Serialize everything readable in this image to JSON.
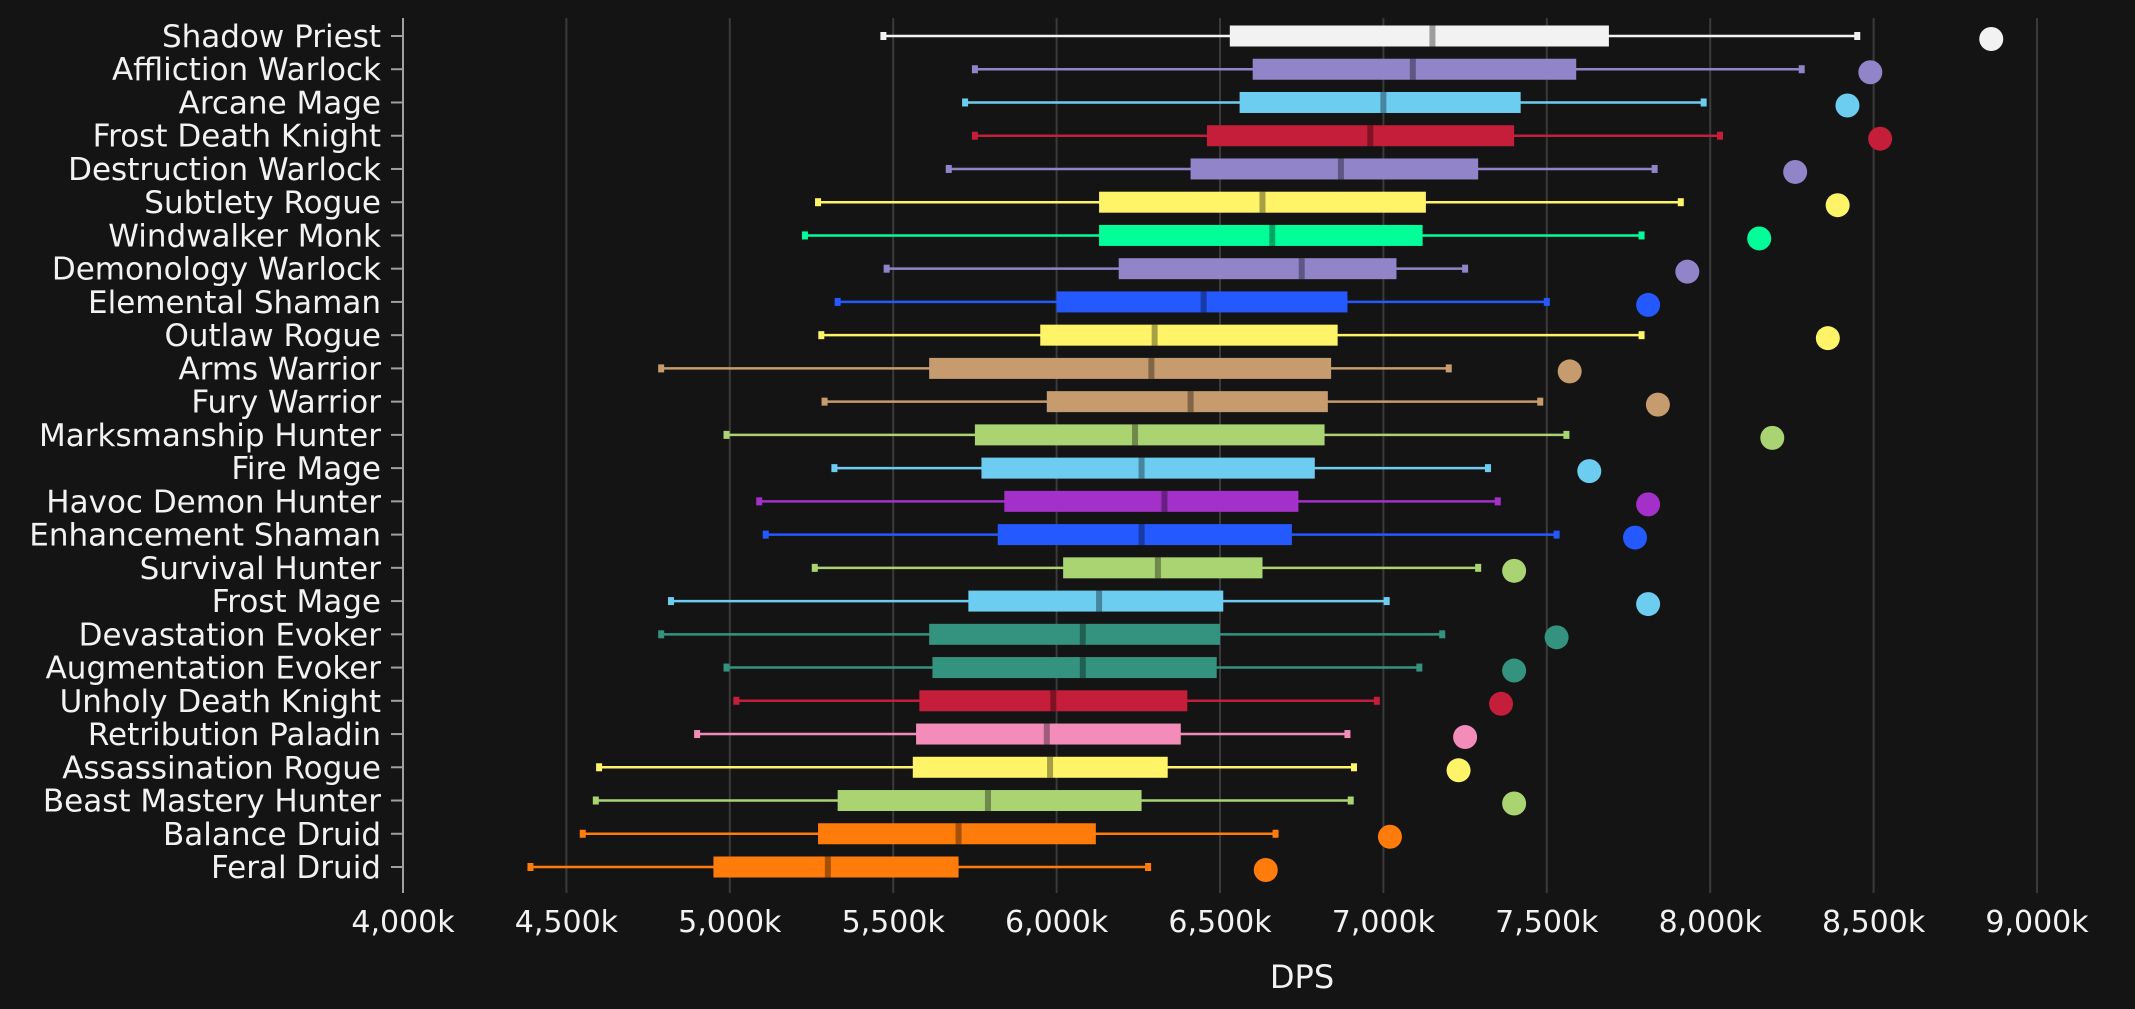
{
  "chart_data": {
    "type": "boxplot",
    "title": "",
    "xlabel": "DPS",
    "ylabel": "",
    "xlim": [
      4000,
      9000
    ],
    "x_unit_suffix": "k",
    "grid": true,
    "ticks": [
      4000,
      4500,
      5000,
      5500,
      6000,
      6500,
      7000,
      7500,
      8000,
      8500,
      9000
    ],
    "tick_labels": [
      "4,000k",
      "4,500k",
      "5,000k",
      "5,500k",
      "6,000k",
      "6,500k",
      "7,000k",
      "7,500k",
      "8,000k",
      "8,500k",
      "9,000k"
    ],
    "series": [
      {
        "name": "Shadow Priest",
        "color": "#f2f2f2",
        "min": 5470,
        "q1": 6530,
        "median": 7150,
        "q3": 7690,
        "max": 8450,
        "max_point": 8860
      },
      {
        "name": "Affliction Warlock",
        "color": "#9184c9",
        "min": 5750,
        "q1": 6600,
        "median": 7090,
        "q3": 7590,
        "max": 8280,
        "max_point": 8490
      },
      {
        "name": "Arcane Mage",
        "color": "#6ccdf1",
        "min": 5720,
        "q1": 6560,
        "median": 7000,
        "q3": 7420,
        "max": 7980,
        "max_point": 8420
      },
      {
        "name": "Frost Death Knight",
        "color": "#c41e3a",
        "min": 5750,
        "q1": 6460,
        "median": 6960,
        "q3": 7400,
        "max": 8030,
        "max_point": 8520
      },
      {
        "name": "Destruction Warlock",
        "color": "#9184c9",
        "min": 5670,
        "q1": 6410,
        "median": 6870,
        "q3": 7290,
        "max": 7830,
        "max_point": 8260
      },
      {
        "name": "Subtlety Rogue",
        "color": "#fff468",
        "min": 5270,
        "q1": 6130,
        "median": 6630,
        "q3": 7130,
        "max": 7910,
        "max_point": 8390
      },
      {
        "name": "Windwalker Monk",
        "color": "#00ff98",
        "min": 5230,
        "q1": 6130,
        "median": 6660,
        "q3": 7120,
        "max": 7790,
        "max_point": 8150
      },
      {
        "name": "Demonology Warlock",
        "color": "#9184c9",
        "min": 5480,
        "q1": 6190,
        "median": 6750,
        "q3": 7040,
        "max": 7250,
        "max_point": 7930
      },
      {
        "name": "Elemental Shaman",
        "color": "#2459ff",
        "min": 5330,
        "q1": 6000,
        "median": 6450,
        "q3": 6890,
        "max": 7500,
        "max_point": 7810
      },
      {
        "name": "Outlaw Rogue",
        "color": "#fff468",
        "min": 5280,
        "q1": 5950,
        "median": 6300,
        "q3": 6860,
        "max": 7790,
        "max_point": 8360
      },
      {
        "name": "Arms Warrior",
        "color": "#c69b6d",
        "min": 4790,
        "q1": 5610,
        "median": 6290,
        "q3": 6840,
        "max": 7200,
        "max_point": 7570
      },
      {
        "name": "Fury Warrior",
        "color": "#c69b6d",
        "min": 5290,
        "q1": 5970,
        "median": 6410,
        "q3": 6830,
        "max": 7480,
        "max_point": 7840
      },
      {
        "name": "Marksmanship Hunter",
        "color": "#aad372",
        "min": 4990,
        "q1": 5750,
        "median": 6240,
        "q3": 6820,
        "max": 7560,
        "max_point": 8190
      },
      {
        "name": "Fire Mage",
        "color": "#6ccdf1",
        "min": 5320,
        "q1": 5770,
        "median": 6260,
        "q3": 6790,
        "max": 7320,
        "max_point": 7630
      },
      {
        "name": "Havoc Demon Hunter",
        "color": "#a330c9",
        "min": 5090,
        "q1": 5840,
        "median": 6330,
        "q3": 6740,
        "max": 7350,
        "max_point": 7810
      },
      {
        "name": "Enhancement Shaman",
        "color": "#2459ff",
        "min": 5110,
        "q1": 5820,
        "median": 6260,
        "q3": 6720,
        "max": 7530,
        "max_point": 7770
      },
      {
        "name": "Survival Hunter",
        "color": "#aad372",
        "min": 5260,
        "q1": 6020,
        "median": 6310,
        "q3": 6630,
        "max": 7290,
        "max_point": 7400
      },
      {
        "name": "Frost Mage",
        "color": "#6ccdf1",
        "min": 4820,
        "q1": 5730,
        "median": 6130,
        "q3": 6510,
        "max": 7010,
        "max_point": 7810
      },
      {
        "name": "Devastation Evoker",
        "color": "#33937f",
        "min": 4790,
        "q1": 5610,
        "median": 6080,
        "q3": 6500,
        "max": 7180,
        "max_point": 7530
      },
      {
        "name": "Augmentation Evoker",
        "color": "#33937f",
        "min": 4990,
        "q1": 5620,
        "median": 6080,
        "q3": 6490,
        "max": 7110,
        "max_point": 7400
      },
      {
        "name": "Unholy Death Knight",
        "color": "#c41e3a",
        "min": 5020,
        "q1": 5580,
        "median": 5990,
        "q3": 6400,
        "max": 6980,
        "max_point": 7360
      },
      {
        "name": "Retribution Paladin",
        "color": "#f48cba",
        "min": 4900,
        "q1": 5570,
        "median": 5970,
        "q3": 6380,
        "max": 6890,
        "max_point": 7250
      },
      {
        "name": "Assassination Rogue",
        "color": "#fff468",
        "min": 4600,
        "q1": 5560,
        "median": 5980,
        "q3": 6340,
        "max": 6910,
        "max_point": 7230
      },
      {
        "name": "Beast Mastery Hunter",
        "color": "#aad372",
        "min": 4590,
        "q1": 5330,
        "median": 5790,
        "q3": 6260,
        "max": 6900,
        "max_point": 7400
      },
      {
        "name": "Balance Druid",
        "color": "#ff7c0a",
        "min": 4550,
        "q1": 5270,
        "median": 5700,
        "q3": 6120,
        "max": 6670,
        "max_point": 7020
      },
      {
        "name": "Feral Druid",
        "color": "#ff7c0a",
        "min": 4390,
        "q1": 4950,
        "median": 5300,
        "q3": 5700,
        "max": 6280,
        "max_point": 6640
      }
    ]
  }
}
